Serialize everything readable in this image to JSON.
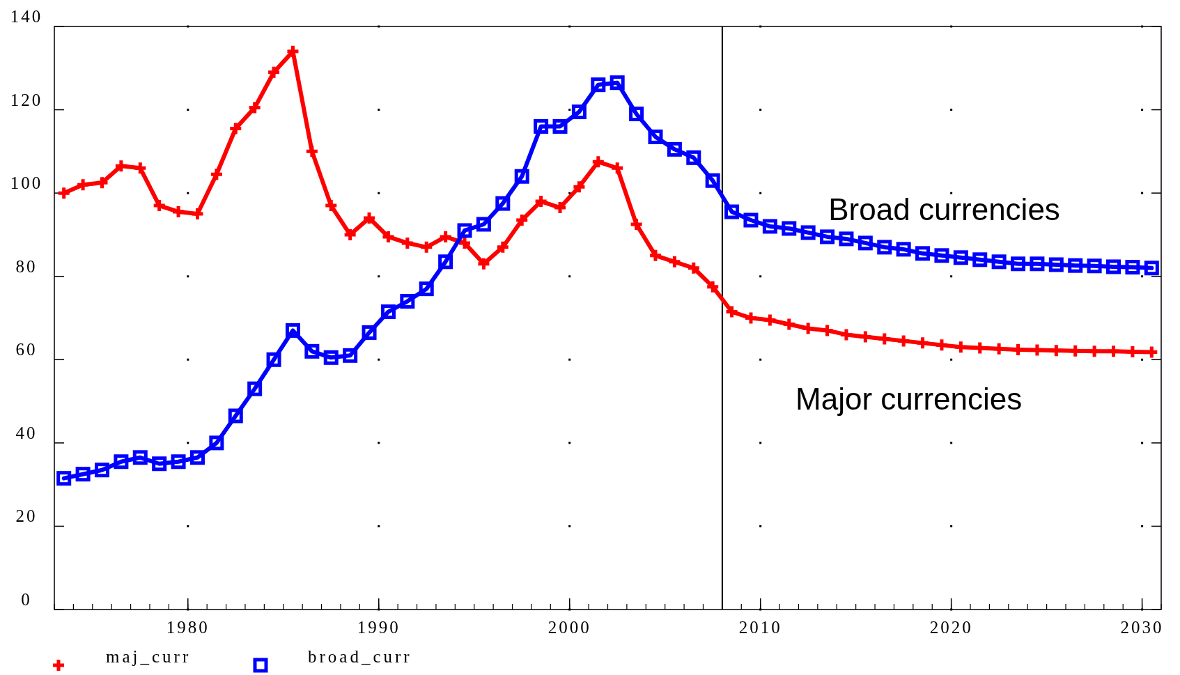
{
  "chart_data": {
    "type": "line",
    "xlim": [
      1973,
      2031
    ],
    "ylim": [
      0,
      140
    ],
    "xticks": [
      1980,
      1990,
      2000,
      2010,
      2020,
      2030
    ],
    "yticks": [
      0,
      20,
      40,
      60,
      80,
      100,
      120,
      140
    ],
    "grid": true,
    "legend": "bottom left",
    "x": [
      1973.5,
      1974.5,
      1975.5,
      1976.5,
      1977.5,
      1978.5,
      1979.5,
      1980.5,
      1981.5,
      1982.5,
      1983.5,
      1984.5,
      1985.5,
      1986.5,
      1987.5,
      1988.5,
      1989.5,
      1990.5,
      1991.5,
      1992.5,
      1993.5,
      1994.5,
      1995.5,
      1996.5,
      1997.5,
      1998.5,
      1999.5,
      2000.5,
      2001.5,
      2002.5,
      2003.5,
      2004.5,
      2005.5,
      2006.5,
      2007.5,
      2008.5,
      2009.5,
      2010.5,
      2011.5,
      2012.5,
      2013.5,
      2014.5,
      2015.5,
      2016.5,
      2017.5,
      2018.5,
      2019.5,
      2020.5,
      2021.5,
      2022.5,
      2023.5,
      2024.5,
      2025.5,
      2026.5,
      2027.5,
      2028.5,
      2029.5,
      2030.5
    ],
    "series": [
      {
        "name": "maj_curr",
        "color": "#ff0000",
        "marker": "cross",
        "values": [
          100,
          102,
          102.5,
          106.5,
          106,
          97,
          95.5,
          95,
          104.5,
          115.5,
          120.5,
          129,
          134,
          110,
          97,
          90,
          94,
          89.5,
          88,
          87,
          89.5,
          88,
          83,
          87,
          93.5,
          98,
          96.5,
          101.5,
          107.5,
          106,
          92.5,
          85,
          83.5,
          82,
          77.5,
          71.5,
          70,
          69.5,
          68.5,
          67.5,
          67,
          66,
          65.5,
          65,
          64.5,
          64,
          63.5,
          63,
          62.8,
          62.6,
          62.4,
          62.3,
          62.2,
          62.1,
          62,
          62,
          61.9,
          61.8
        ]
      },
      {
        "name": "broad_curr",
        "color": "#0000ff",
        "marker": "square",
        "values": [
          31.5,
          32.5,
          33.5,
          35.5,
          36.5,
          35,
          35.5,
          36.5,
          40,
          46.5,
          53,
          60,
          67,
          62,
          60.5,
          61,
          66.5,
          71.5,
          74,
          77,
          83.5,
          91,
          92.5,
          97.5,
          104,
          116,
          116,
          119.5,
          126,
          126.5,
          119,
          113.5,
          110.5,
          108.5,
          103,
          95.5,
          93.5,
          92,
          91.5,
          90.5,
          89.5,
          89,
          88,
          87,
          86.5,
          85.5,
          85,
          84.5,
          84,
          83.5,
          83,
          83,
          82.8,
          82.6,
          82.5,
          82.3,
          82.2,
          82
        ]
      }
    ],
    "ref_lines": [
      {
        "axis": "x",
        "value": 2008,
        "color": "#000000"
      }
    ],
    "annotations": [
      "Broad currencies",
      "Major currencies"
    ]
  }
}
